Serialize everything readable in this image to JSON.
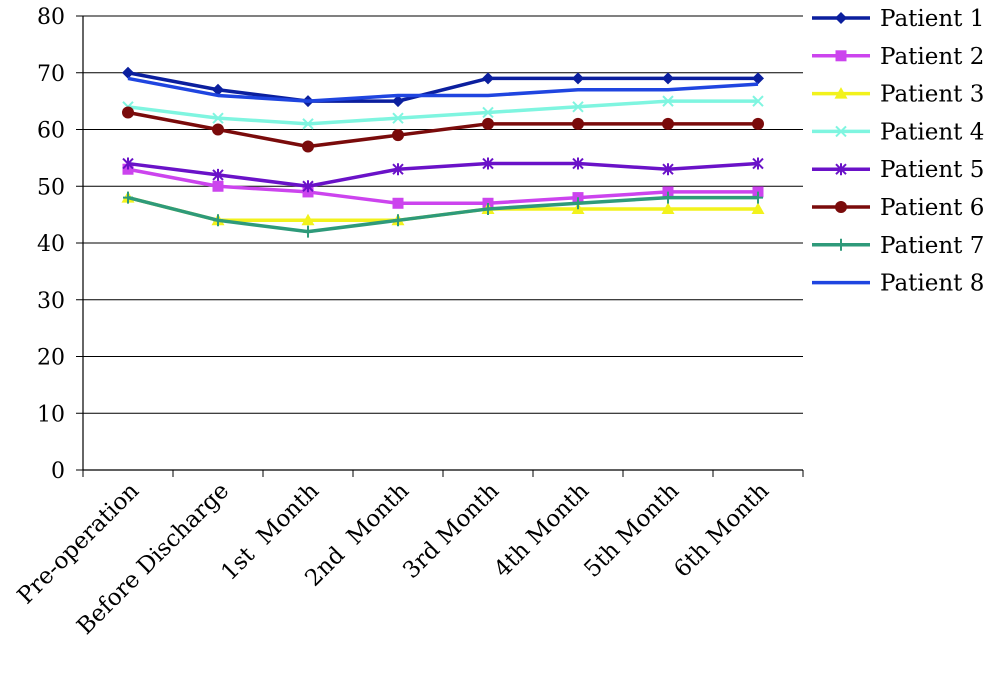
{
  "chart_data": {
    "type": "line",
    "title": "",
    "xlabel": "",
    "ylabel": "",
    "ylim": [
      0,
      80
    ],
    "yticks": [
      0,
      10,
      20,
      30,
      40,
      50,
      60,
      70,
      80
    ],
    "grid": "horizontal",
    "legend_position": "right",
    "categories": [
      "Pre-operation",
      "Before Discharge",
      "1st  Month",
      "2nd  Month",
      "3rd Month",
      "4th Month",
      "5th Month",
      "6th Month"
    ],
    "series": [
      {
        "name": "Patient 1",
        "color": "#0b1f9e",
        "marker": "diamond",
        "values": [
          70,
          67,
          65,
          65,
          69,
          69,
          69,
          69
        ]
      },
      {
        "name": "Patient 2",
        "color": "#cc44ee",
        "marker": "square",
        "values": [
          53,
          50,
          49,
          47,
          47,
          48,
          49,
          49
        ]
      },
      {
        "name": "Patient 3",
        "color": "#f2f21c",
        "marker": "triangle",
        "values": [
          48,
          44,
          44,
          44,
          46,
          46,
          46,
          46
        ]
      },
      {
        "name": "Patient 4",
        "color": "#7ff5e0",
        "marker": "x",
        "values": [
          64,
          62,
          61,
          62,
          63,
          64,
          65,
          65
        ]
      },
      {
        "name": "Patient 5",
        "color": "#6a12c8",
        "marker": "star",
        "values": [
          54,
          52,
          50,
          53,
          54,
          54,
          53,
          54
        ]
      },
      {
        "name": "Patient 6",
        "color": "#7a0b0b",
        "marker": "circle",
        "values": [
          63,
          60,
          57,
          59,
          61,
          61,
          61,
          61
        ]
      },
      {
        "name": "Patient 7",
        "color": "#2e9a7a",
        "marker": "plus",
        "values": [
          48,
          44,
          42,
          44,
          46,
          47,
          48,
          48
        ]
      },
      {
        "name": "Patient 8",
        "color": "#1f45e0",
        "marker": "none",
        "values": [
          69,
          66,
          65,
          66,
          66,
          67,
          67,
          68
        ]
      }
    ]
  }
}
